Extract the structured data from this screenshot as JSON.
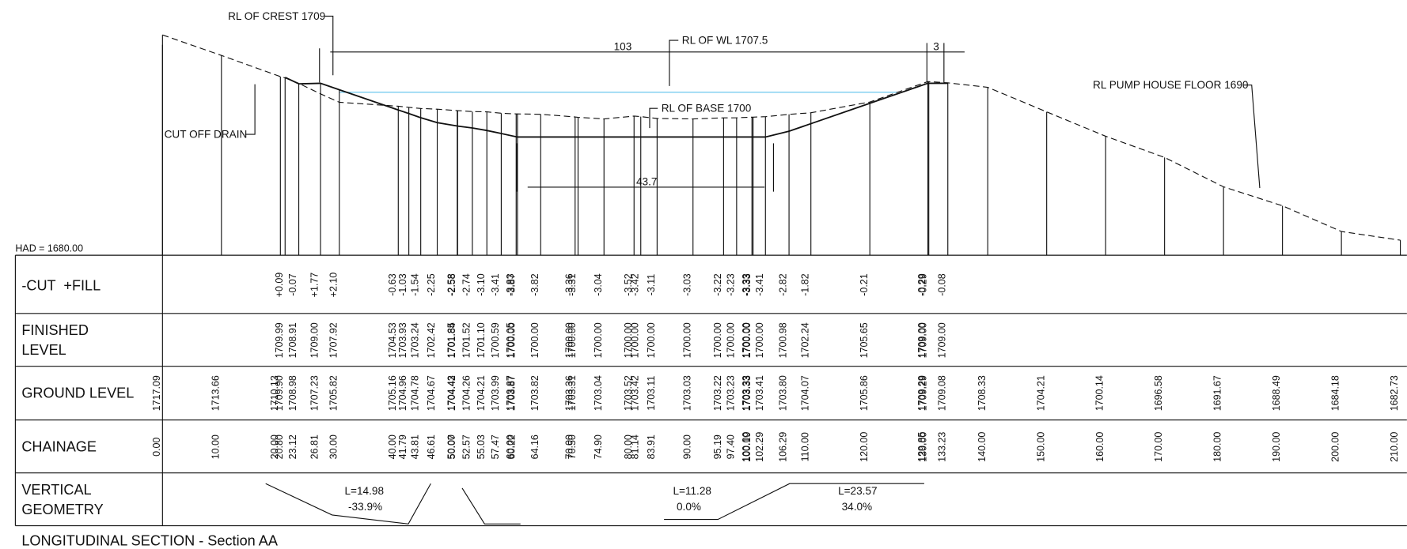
{
  "title": "LONGITUDINAL SECTION - Section AA",
  "annotations": {
    "crest": "RL OF CREST 1709",
    "length_top": "103",
    "water_level": "RL OF WL 1707.5",
    "crest_width": "3",
    "pump_house": "RL PUMP HOUSE FLOOR 1690",
    "base": "RL OF BASE 1700",
    "drain": "CUT OFF DRAIN",
    "base_width": "43.7",
    "datum": "HAD = 1680.00"
  },
  "table": {
    "cut_fill": "-CUT  +FILL",
    "finished": [
      "FINISHED",
      "LEVEL"
    ],
    "ground": "GROUND LEVEL",
    "chainage": "CHAINAGE",
    "vertical": [
      "VERTICAL",
      "GEOMETRY"
    ]
  },
  "stations": [
    {
      "chainage": "0.00",
      "ground": "1717.09"
    },
    {
      "chainage": "10.00",
      "ground": "1713.66"
    },
    {
      "chainage": "20.00",
      "ground": "1710.13"
    },
    {
      "chainage": "20.80",
      "ground": "1709.90",
      "finished": "1709.99",
      "cut_fill": "+0.09"
    },
    {
      "chainage": "23.12",
      "ground": "1708.98",
      "finished": "1708.91",
      "cut_fill": "-0.07"
    },
    {
      "chainage": "26.81",
      "ground": "1707.23",
      "finished": "1709.00",
      "cut_fill": "+1.77"
    },
    {
      "chainage": "30.00",
      "ground": "1705.82",
      "finished": "1707.92",
      "cut_fill": "+2.10"
    },
    {
      "chainage": "40.00",
      "ground": "1705.16",
      "finished": "1704.53",
      "cut_fill": "-0.63"
    },
    {
      "chainage": "41.79",
      "ground": "1704.96",
      "finished": "1703.93",
      "cut_fill": "-1.03"
    },
    {
      "chainage": "43.81",
      "ground": "1704.78",
      "finished": "1703.24",
      "cut_fill": "-1.54"
    },
    {
      "chainage": "46.61",
      "ground": "1704.67",
      "finished": "1702.42",
      "cut_fill": "-2.25"
    },
    {
      "chainage": "50.00",
      "ground": "1704.43",
      "finished": "1701.85",
      "cut_fill": "-2.58"
    },
    {
      "chainage": "50.07",
      "ground": "1704.42",
      "finished": "1701.84",
      "cut_fill": "-2.58"
    },
    {
      "chainage": "52.57",
      "ground": "1704.26",
      "finished": "1701.52",
      "cut_fill": "-2.74"
    },
    {
      "chainage": "55.03",
      "ground": "1704.21",
      "finished": "1701.10",
      "cut_fill": "-3.10"
    },
    {
      "chainage": "57.47",
      "ground": "1703.99",
      "finished": "1700.59",
      "cut_fill": "-3.41"
    },
    {
      "chainage": "60.00",
      "ground": "1703.87",
      "finished": "1700.05",
      "cut_fill": "-3.83"
    },
    {
      "chainage": "60.22",
      "ground": "1703.87",
      "finished": "1700.00",
      "cut_fill": "-3.87"
    },
    {
      "chainage": "64.16",
      "ground": "1703.82",
      "finished": "1700.00",
      "cut_fill": "-3.82"
    },
    {
      "chainage": "70.00",
      "ground": "1703.36",
      "finished": "1700.00",
      "cut_fill": "-3.36"
    },
    {
      "chainage": "70.50",
      "ground": "1703.31",
      "finished": "1700.00",
      "cut_fill": "-3.31"
    },
    {
      "chainage": "74.90",
      "ground": "1703.04",
      "finished": "1700.00",
      "cut_fill": "-3.04"
    },
    {
      "chainage": "80.00",
      "ground": "1703.52",
      "finished": "1700.00",
      "cut_fill": "-3.52"
    },
    {
      "chainage": "81.14",
      "ground": "1703.42",
      "finished": "1700.00",
      "cut_fill": "-3.42"
    },
    {
      "chainage": "83.91",
      "ground": "1703.11",
      "finished": "1700.00",
      "cut_fill": "-3.11"
    },
    {
      "chainage": "90.00",
      "ground": "1703.03",
      "finished": "1700.00",
      "cut_fill": "-3.03"
    },
    {
      "chainage": "95.19",
      "ground": "1703.22",
      "finished": "1700.00",
      "cut_fill": "-3.22"
    },
    {
      "chainage": "97.40",
      "ground": "1703.23",
      "finished": "1700.00",
      "cut_fill": "-3.23"
    },
    {
      "chainage": "100.00",
      "ground": "1703.33",
      "finished": "1700.00",
      "cut_fill": "-3.33"
    },
    {
      "chainage": "100.19",
      "ground": "1703.33",
      "finished": "1700.00",
      "cut_fill": "-3.33"
    },
    {
      "chainage": "102.29",
      "ground": "1703.41",
      "finished": "1700.00",
      "cut_fill": "-3.41"
    },
    {
      "chainage": "106.29",
      "ground": "1703.80",
      "finished": "1700.98",
      "cut_fill": "-2.82"
    },
    {
      "chainage": "110.00",
      "ground": "1704.07",
      "finished": "1702.24",
      "cut_fill": "-1.82"
    },
    {
      "chainage": "120.00",
      "ground": "1705.86",
      "finished": "1705.65",
      "cut_fill": "-0.21"
    },
    {
      "chainage": "129.85",
      "ground": "1709.29",
      "finished": "1709.00",
      "cut_fill": "-0.29"
    },
    {
      "chainage": "130.00",
      "ground": "1709.29",
      "finished": "1709.00",
      "cut_fill": "-0.29"
    },
    {
      "chainage": "133.23",
      "ground": "1709.08",
      "finished": "1709.00",
      "cut_fill": "-0.08"
    },
    {
      "chainage": "140.00",
      "ground": "1708.33"
    },
    {
      "chainage": "150.00",
      "ground": "1704.21"
    },
    {
      "chainage": "160.00",
      "ground": "1700.14"
    },
    {
      "chainage": "170.00",
      "ground": "1696.58"
    },
    {
      "chainage": "180.00",
      "ground": "1691.67"
    },
    {
      "chainage": "190.00",
      "ground": "1688.49"
    },
    {
      "chainage": "200.00",
      "ground": "1684.18"
    },
    {
      "chainage": "210.00",
      "ground": "1682.73"
    }
  ],
  "vertical_geometry": [
    {
      "length": "L=14.98",
      "grade": "-33.9%"
    },
    {
      "length": "L=11.28",
      "grade": "0.0%"
    },
    {
      "length": "L=23.57",
      "grade": "34.0%"
    }
  ]
}
